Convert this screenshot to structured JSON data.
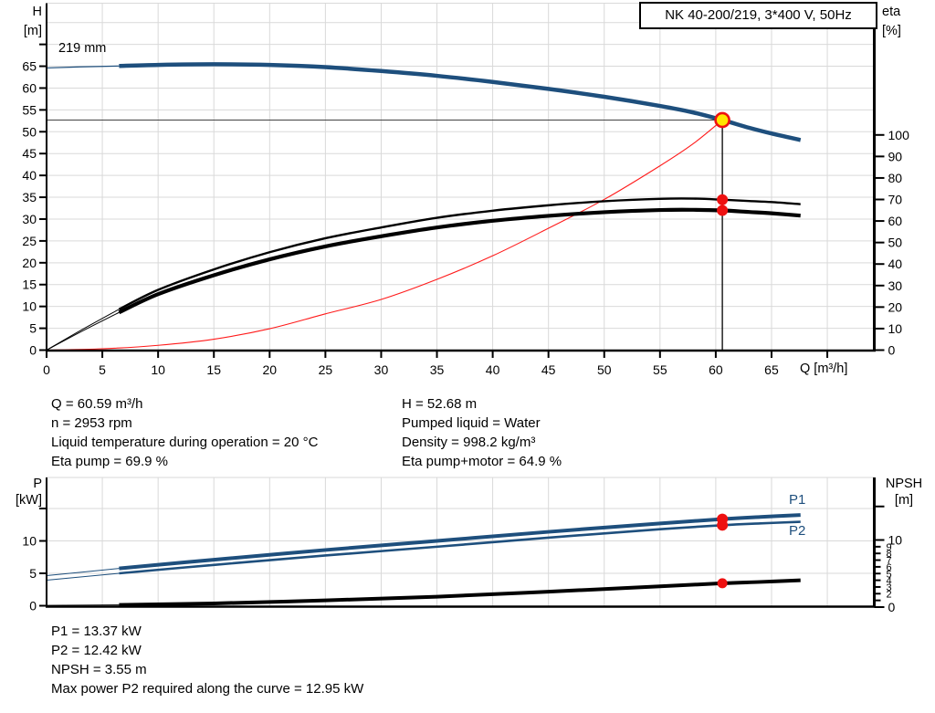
{
  "header": {
    "title_box": "NK 40-200/219, 3*400 V, 50Hz"
  },
  "colors": {
    "curve_blue": "#1e4f7d",
    "marker_red": "#ee1111",
    "marker_yellow": "#ffe600",
    "system_red": "#ff1a1a",
    "grid_gray": "#d9d9d9",
    "axis_black": "#000000"
  },
  "top_chart_labels": {
    "y_left_1": "H",
    "y_left_2": "[m]",
    "y_right_1": "eta",
    "y_right_2": "[%]",
    "x_label": "Q [m³/h]",
    "curve_label": "219 mm"
  },
  "mid_annotations": {
    "left": [
      "Q = 60.59 m³/h",
      "n = 2953 rpm",
      "Liquid temperature during operation = 20 °C",
      "Eta pump = 69.9 %"
    ],
    "right": [
      "H = 52.68 m",
      "Pumped liquid = Water",
      "Density = 998.2 kg/m³",
      "Eta pump+motor = 64.9 %"
    ]
  },
  "bottom_chart_labels": {
    "y_left_1": "P",
    "y_left_2": "[kW]",
    "y_right_1": "NPSH",
    "y_right_2": "[m]",
    "p1": "P1",
    "p2": "P2"
  },
  "bottom_annotations": [
    "P1 = 13.37 kW",
    "P2 = 12.42 kW",
    "NPSH = 3.55 m",
    "Max power P2 required along the curve = 12.95 kW"
  ],
  "duty_point": {
    "Q": 60.59,
    "H": 52.68,
    "eta_pump": 69.9,
    "eta_pump_motor": 64.9,
    "P1": 13.37,
    "P2": 12.42,
    "NPSH": 3.55
  },
  "chart_data": [
    {
      "id": "head-eta-chart",
      "type": "line",
      "title": "NK 40-200/219, 3*400 V, 50Hz",
      "xlabel": "Q [m³/h]",
      "xlim": [
        0,
        74.2
      ],
      "ylabel": "H [m]",
      "ylim": [
        0,
        79.4
      ],
      "y2label": "eta [%]",
      "y2lim": [
        0,
        161
      ],
      "x_ticks": [
        [
          0,
          "0",
          0
        ],
        [
          5,
          "5",
          0
        ],
        [
          10,
          "10",
          0
        ],
        [
          15,
          "15",
          0
        ],
        [
          20,
          "20",
          0
        ],
        [
          25,
          "25",
          0
        ],
        [
          30,
          "30",
          0
        ],
        [
          35,
          "35",
          0
        ],
        [
          40,
          "40",
          0
        ],
        [
          45,
          "45",
          0
        ],
        [
          50,
          "50",
          0
        ],
        [
          55,
          "55",
          0
        ],
        [
          60,
          "60",
          0
        ],
        [
          65,
          "65",
          0
        ],
        [
          70,
          "",
          0
        ]
      ],
      "y_ticks": [
        [
          70,
          "",
          0
        ],
        [
          65,
          "65",
          0
        ],
        [
          60,
          "60",
          0
        ],
        [
          55,
          "55",
          0
        ],
        [
          50,
          "50",
          0
        ],
        [
          45,
          "45",
          0
        ],
        [
          40,
          "40",
          0
        ],
        [
          35,
          "35",
          0
        ],
        [
          30,
          "30",
          0
        ],
        [
          25,
          "25",
          0
        ],
        [
          20,
          "20",
          0
        ],
        [
          15,
          "15",
          0
        ],
        [
          10,
          "10",
          0
        ],
        [
          5,
          "5",
          0
        ],
        [
          0,
          "0",
          0
        ]
      ],
      "y2_ticks": [
        [
          100,
          "100",
          0
        ],
        [
          90,
          "90",
          0
        ],
        [
          80,
          "80",
          0
        ],
        [
          70,
          "70",
          0
        ],
        [
          60,
          "60",
          0
        ],
        [
          50,
          "50",
          0
        ],
        [
          40,
          "40",
          0
        ],
        [
          30,
          "30",
          0
        ],
        [
          20,
          "20",
          0
        ],
        [
          10,
          "10",
          0
        ],
        [
          0,
          "0",
          0
        ]
      ],
      "crosshair": {
        "q": 60.59,
        "h": 52.68
      },
      "series": [
        {
          "name": "system-curve",
          "axis": "y",
          "color": "#ff1a1a",
          "width": 1.1,
          "points": [
            [
              0,
              0
            ],
            [
              5,
              0.3
            ],
            [
              10,
              1.1
            ],
            [
              15,
              2.5
            ],
            [
              20,
              4.9
            ],
            [
              25,
              8.3
            ],
            [
              30,
              11.6
            ],
            [
              35,
              16.2
            ],
            [
              40,
              21.6
            ],
            [
              45,
              27.9
            ],
            [
              50,
              34.5
            ],
            [
              55,
              42.2
            ],
            [
              58,
              47.3
            ],
            [
              60.59,
              52.68
            ]
          ]
        },
        {
          "name": "head-curve-lead-in",
          "axis": "y",
          "color": "#1e4f7d",
          "width": 1.2,
          "points": [
            [
              0,
              64.6
            ],
            [
              3,
              64.85
            ],
            [
              6.5,
              65.05
            ]
          ]
        },
        {
          "name": "head-curve-219mm",
          "label": "219 mm",
          "axis": "y",
          "color": "#1e4f7d",
          "width": 4.5,
          "points": [
            [
              6.5,
              65.05
            ],
            [
              10,
              65.3
            ],
            [
              15,
              65.45
            ],
            [
              20,
              65.3
            ],
            [
              25,
              64.8
            ],
            [
              30,
              63.9
            ],
            [
              35,
              62.8
            ],
            [
              40,
              61.4
            ],
            [
              45,
              59.8
            ],
            [
              50,
              58.0
            ],
            [
              55,
              55.9
            ],
            [
              58,
              54.4
            ],
            [
              60.59,
              52.68
            ],
            [
              63,
              50.9
            ],
            [
              65,
              49.6
            ],
            [
              67.6,
              48.1
            ]
          ]
        },
        {
          "name": "eta-pump-lead-in",
          "axis": "y2",
          "color": "#000000",
          "width": 1,
          "points": [
            [
              0,
              0
            ],
            [
              3,
              9
            ],
            [
              6.5,
              19
            ]
          ]
        },
        {
          "name": "eta-pump-curve",
          "axis": "y2",
          "color": "#000000",
          "width": 2.4,
          "points": [
            [
              6.5,
              19
            ],
            [
              10,
              28
            ],
            [
              15,
              37.5
            ],
            [
              20,
              45.5
            ],
            [
              25,
              52
            ],
            [
              30,
              57
            ],
            [
              35,
              61.5
            ],
            [
              40,
              64.8
            ],
            [
              45,
              67.3
            ],
            [
              50,
              69.2
            ],
            [
              55,
              70.3
            ],
            [
              58,
              70.4
            ],
            [
              60.59,
              69.9
            ],
            [
              63,
              69.3
            ],
            [
              65,
              68.8
            ],
            [
              67.6,
              67.8
            ]
          ]
        },
        {
          "name": "eta-pump-motor-lead-in",
          "axis": "y2",
          "color": "#000000",
          "width": 1,
          "points": [
            [
              0,
              0
            ],
            [
              3,
              8.3
            ],
            [
              6.5,
              17.5
            ]
          ]
        },
        {
          "name": "eta-pump-motor-curve",
          "axis": "y2",
          "color": "#000000",
          "width": 4.2,
          "points": [
            [
              6.5,
              17.5
            ],
            [
              10,
              26
            ],
            [
              15,
              34.8
            ],
            [
              20,
              42.2
            ],
            [
              25,
              48.2
            ],
            [
              30,
              52.9
            ],
            [
              35,
              57
            ],
            [
              40,
              60.1
            ],
            [
              45,
              62.4
            ],
            [
              50,
              64.1
            ],
            [
              55,
              65.1
            ],
            [
              58,
              65.2
            ],
            [
              60.59,
              64.9
            ],
            [
              63,
              64.2
            ],
            [
              65,
              63.6
            ],
            [
              67.6,
              62.5
            ]
          ]
        }
      ],
      "markers": [
        {
          "name": "eta-pump-duty-point",
          "axis": "y2",
          "x": 60.59,
          "y": 69.9,
          "r": 6,
          "fill": "#ee1111"
        },
        {
          "name": "eta-pump-motor-duty-point",
          "axis": "y2",
          "x": 60.59,
          "y": 64.9,
          "r": 6,
          "fill": "#ee1111"
        },
        {
          "name": "duty-point",
          "axis": "y",
          "x": 60.59,
          "y": 52.68,
          "r": 7.5,
          "fill": "#ffe600",
          "stroke": "#ee1111",
          "stroke_width": 2.6
        }
      ]
    },
    {
      "id": "power-npsh-chart",
      "type": "line",
      "xlabel": "",
      "xlim": [
        0,
        74.2
      ],
      "ylabel": "P [kW]",
      "ylim": [
        0,
        19.8
      ],
      "y2label": "NPSH [m]",
      "y2lim": [
        0,
        19.3
      ],
      "x_ticks": [],
      "y_ticks": [
        [
          15,
          "",
          0
        ],
        [
          10,
          "10",
          0
        ],
        [
          5,
          "5",
          0
        ],
        [
          0,
          "0",
          0
        ]
      ],
      "y2_ticks": [
        [
          15,
          "",
          0
        ],
        [
          10,
          "10",
          0
        ],
        [
          9,
          "9",
          1
        ],
        [
          8,
          "8",
          1
        ],
        [
          7,
          "7",
          1
        ],
        [
          6,
          "6",
          1
        ],
        [
          5,
          "5",
          1
        ],
        [
          4,
          "4",
          1
        ],
        [
          3,
          "3",
          1
        ],
        [
          2,
          "2",
          1
        ],
        [
          1,
          "",
          1
        ],
        [
          0,
          "0",
          0
        ]
      ],
      "series": [
        {
          "name": "p1-lead-in",
          "axis": "y",
          "color": "#1e4f7d",
          "width": 1,
          "points": [
            [
              0,
              4.65
            ],
            [
              6.5,
              5.75
            ]
          ]
        },
        {
          "name": "p1-curve",
          "label": "P1",
          "axis": "y",
          "color": "#1e4f7d",
          "width": 4,
          "points": [
            [
              6.5,
              5.75
            ],
            [
              15,
              7.1
            ],
            [
              25,
              8.6
            ],
            [
              35,
              10.0
            ],
            [
              45,
              11.4
            ],
            [
              55,
              12.7
            ],
            [
              60.59,
              13.37
            ],
            [
              64,
              13.7
            ],
            [
              67.6,
              14.0
            ]
          ]
        },
        {
          "name": "p2-lead-in",
          "axis": "y",
          "color": "#1e4f7d",
          "width": 1,
          "points": [
            [
              0,
              3.94
            ],
            [
              6.5,
              5.0
            ]
          ]
        },
        {
          "name": "p2-curve",
          "label": "P2",
          "axis": "y",
          "color": "#1e4f7d",
          "width": 2.6,
          "points": [
            [
              6.5,
              5.0
            ],
            [
              15,
              6.3
            ],
            [
              25,
              7.75
            ],
            [
              35,
              9.1
            ],
            [
              45,
              10.5
            ],
            [
              55,
              11.8
            ],
            [
              60.59,
              12.42
            ],
            [
              64,
              12.7
            ],
            [
              67.6,
              12.95
            ]
          ]
        },
        {
          "name": "npsh-lead-in",
          "axis": "y2",
          "color": "#000000",
          "width": 1,
          "points": [
            [
              0,
              0.25
            ],
            [
              6.5,
              0.33
            ]
          ]
        },
        {
          "name": "npsh-curve",
          "axis": "y2",
          "color": "#000000",
          "width": 4,
          "points": [
            [
              6.5,
              0.33
            ],
            [
              15,
              0.55
            ],
            [
              25,
              1.0
            ],
            [
              35,
              1.55
            ],
            [
              45,
              2.3
            ],
            [
              55,
              3.1
            ],
            [
              60.59,
              3.55
            ],
            [
              64,
              3.75
            ],
            [
              67.6,
              4.0
            ]
          ]
        }
      ],
      "markers": [
        {
          "name": "p1-duty-point",
          "axis": "y",
          "x": 60.59,
          "y": 13.37,
          "r": 6,
          "fill": "#ee1111"
        },
        {
          "name": "p2-duty-point",
          "axis": "y",
          "x": 60.59,
          "y": 12.42,
          "r": 6,
          "fill": "#ee1111"
        },
        {
          "name": "npsh-duty-point",
          "axis": "y2",
          "x": 60.59,
          "y": 3.55,
          "r": 5.5,
          "fill": "#ee1111"
        }
      ]
    }
  ]
}
